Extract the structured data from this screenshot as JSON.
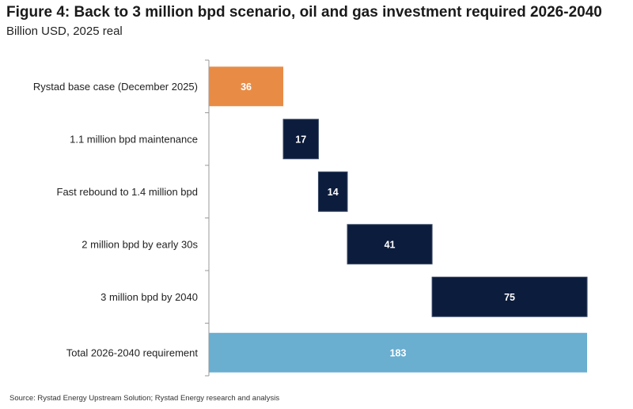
{
  "title": "Figure 4: Back to 3 million bpd scenario, oil and gas investment required 2026-2040",
  "subtitle": "Billion USD, 2025 real",
  "source": "Source: Rystad Energy Upstream Solution; Rystad Energy research and analysis",
  "colors": {
    "base": "#e88c45",
    "increment": "#0c1c3c",
    "total": "#6aaed0",
    "axis": "#999999"
  },
  "chart_data": {
    "type": "bar",
    "orientation": "horizontal-waterfall",
    "categories": [
      "Rystad base case (December 2025)",
      "1.1 million bpd maintenance",
      "Fast rebound to 1.4 million bpd",
      "2 million bpd by early 30s",
      "3 million bpd by 2040",
      "Total 2026-2040 requirement"
    ],
    "values": [
      36,
      17,
      14,
      41,
      75,
      183
    ],
    "start": [
      0,
      36,
      53,
      67,
      108,
      0
    ],
    "kind": [
      "base",
      "increment",
      "increment",
      "increment",
      "increment",
      "total"
    ],
    "xlim": [
      0,
      183
    ],
    "grid": false,
    "legend": "none"
  }
}
